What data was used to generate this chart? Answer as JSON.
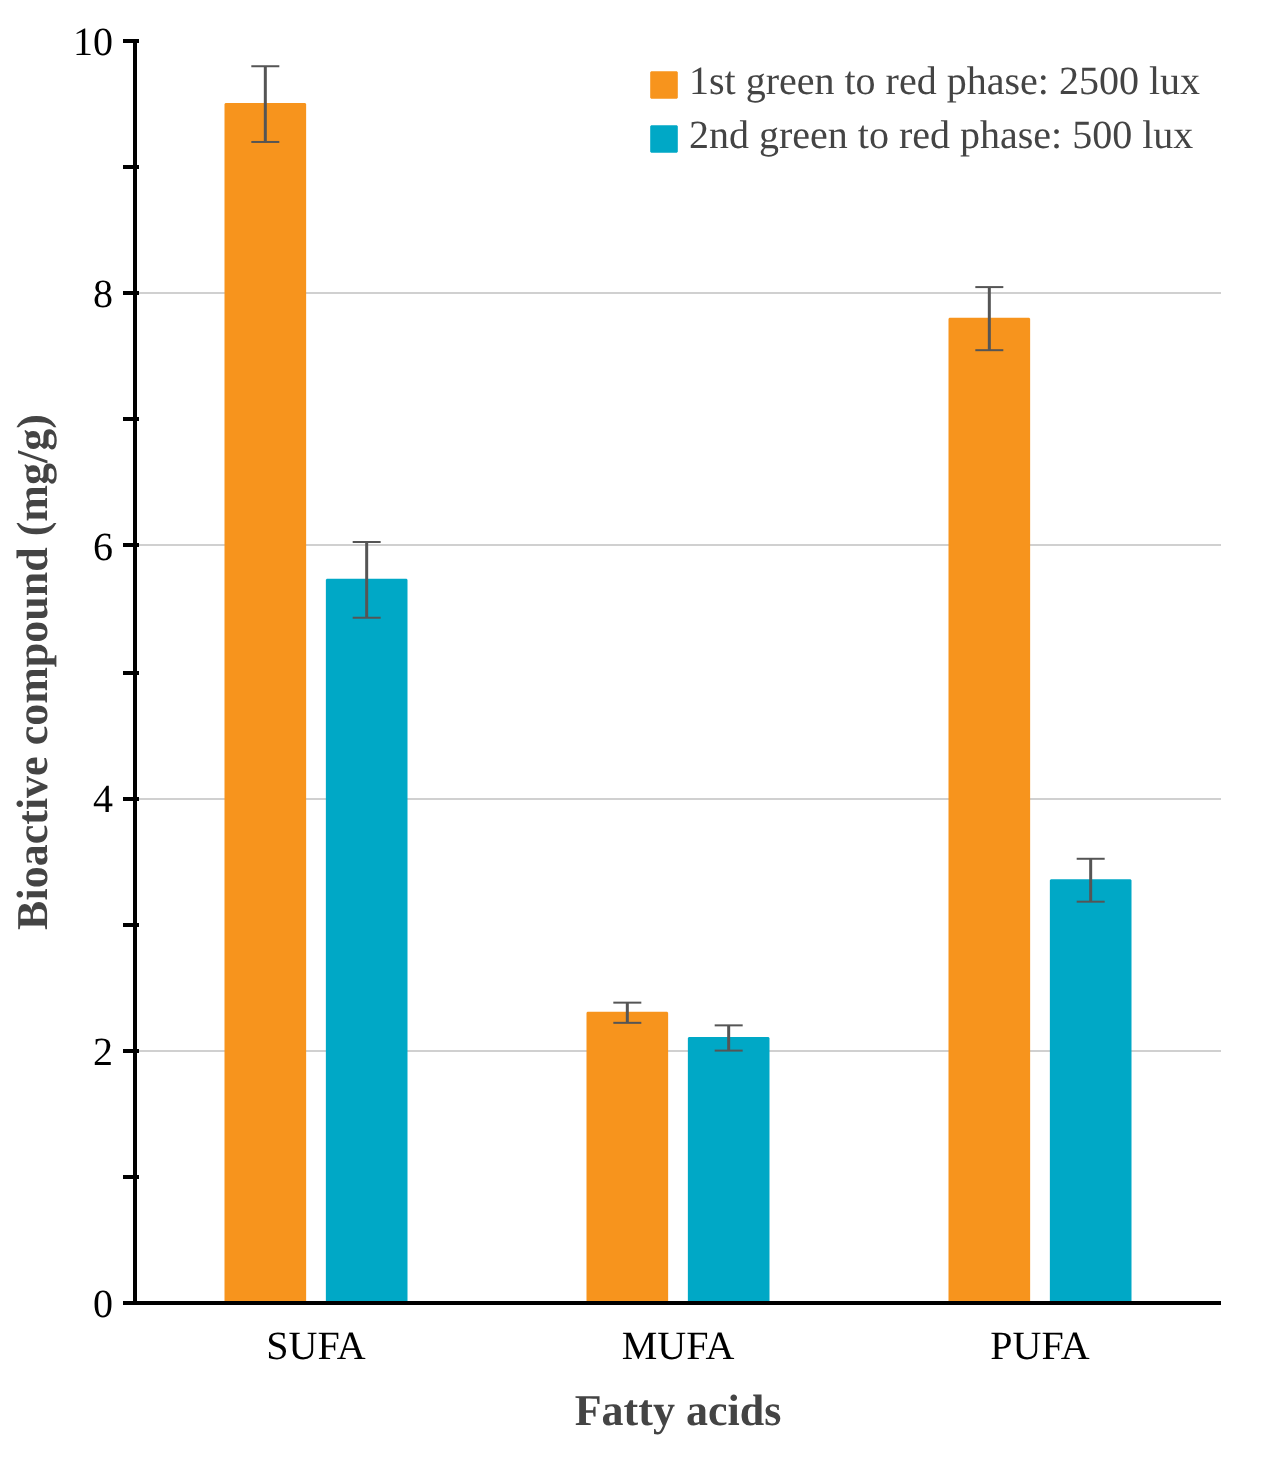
{
  "chart_data": {
    "type": "bar",
    "xlabel": "Fatty acids",
    "ylabel": "Bioactive compound (mg/g)",
    "categories": [
      "SUFA",
      "MUFA",
      "PUFA"
    ],
    "series": [
      {
        "name": "1st green to red phase: 2500 lux",
        "color": "#f7941d",
        "values": [
          9.5,
          2.3,
          7.8
        ],
        "errors": [
          0.3,
          0.08,
          0.25
        ]
      },
      {
        "name": "2nd green to red phase: 500 lux",
        "color": "#00a8c6",
        "values": [
          5.73,
          2.1,
          3.35
        ],
        "errors": [
          0.3,
          0.1,
          0.17
        ]
      }
    ],
    "ylim": [
      0,
      10
    ],
    "yticks": [
      0,
      {
        "value": 1,
        "label": null
      },
      2,
      {
        "value": 3,
        "label": null
      },
      4,
      {
        "value": 5,
        "label": null
      },
      6,
      {
        "value": 7,
        "label": null
      },
      8,
      {
        "value": 9,
        "label": null
      },
      10
    ],
    "grid": "y",
    "legend": "top right"
  }
}
